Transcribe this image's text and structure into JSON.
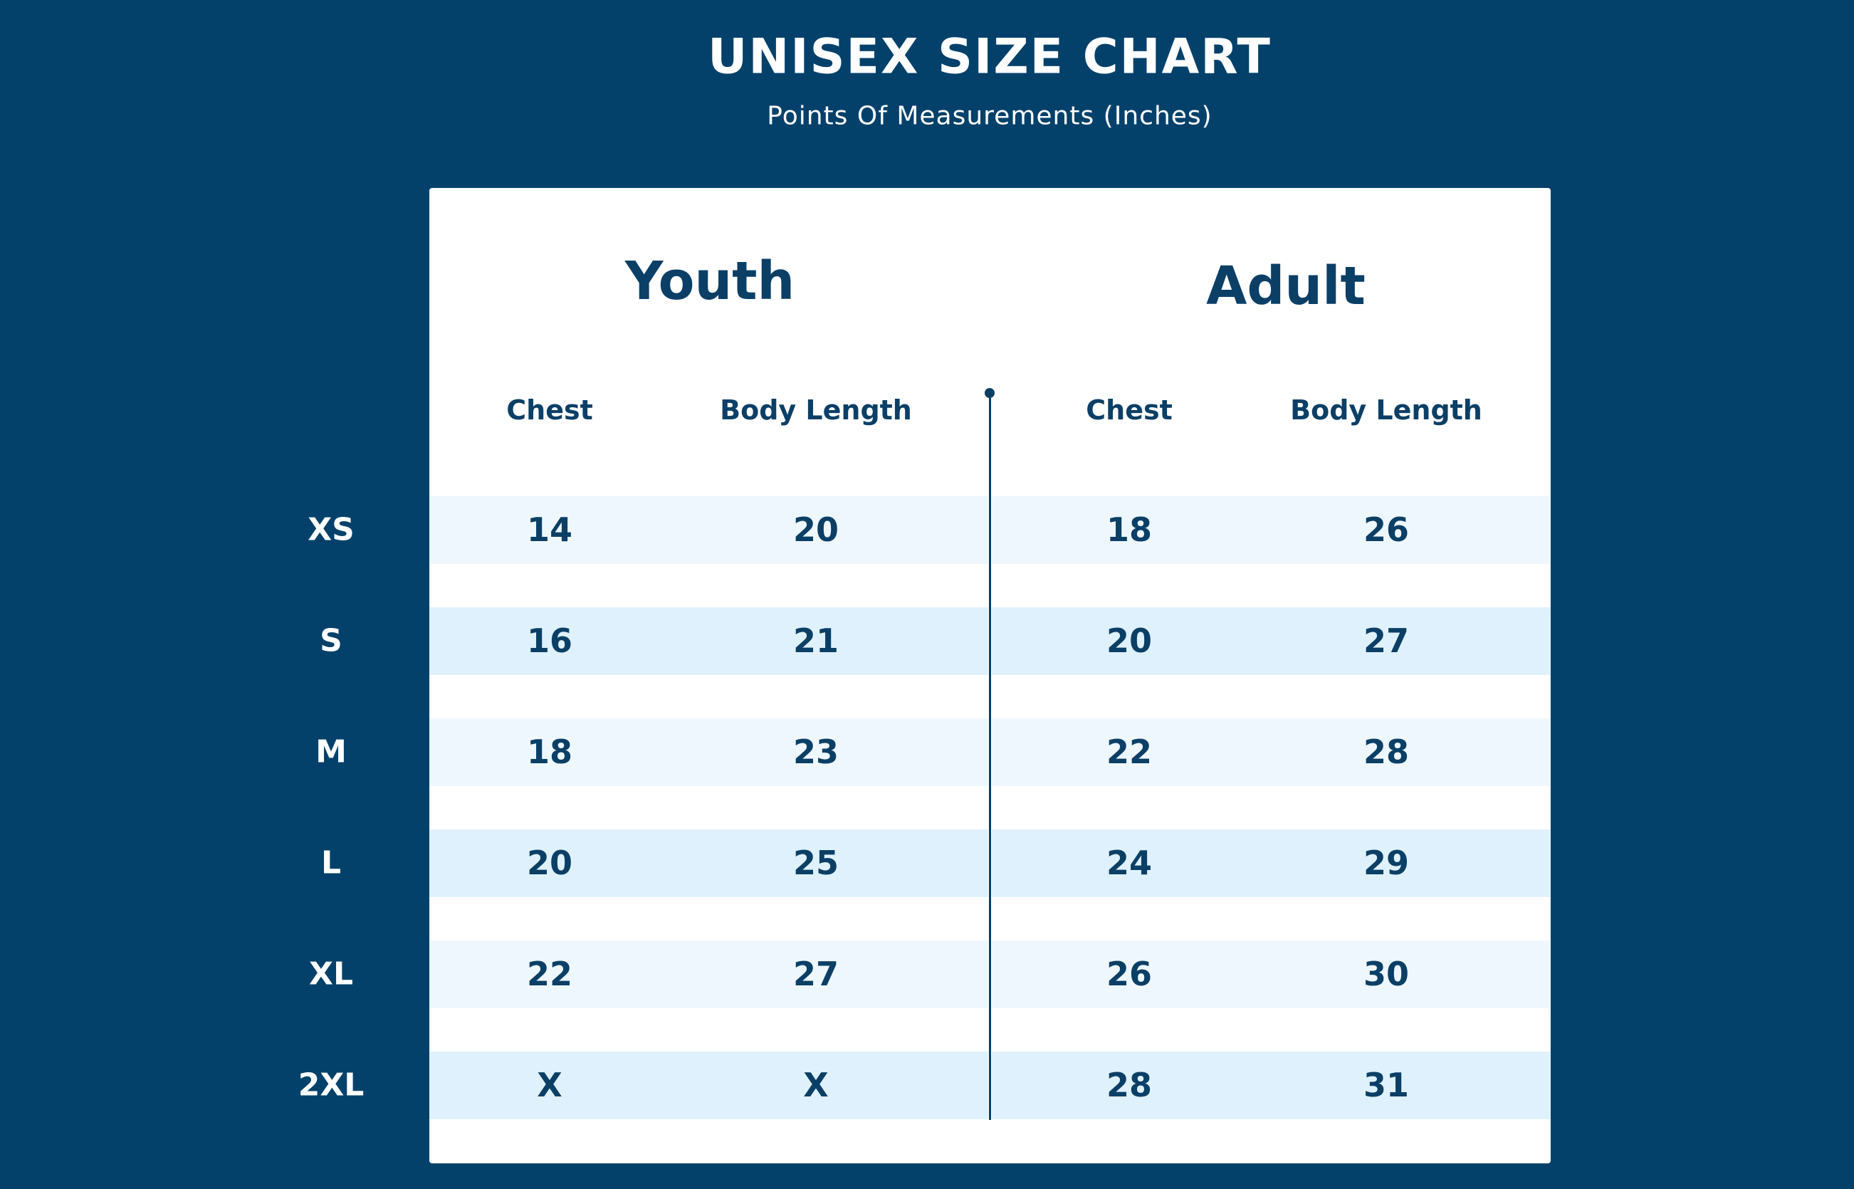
{
  "header": {
    "title": "UNISEX SIZE CHART",
    "subtitle": "Points Of Measurements (Inches)"
  },
  "table": {
    "groups": [
      "Youth",
      "Adult"
    ],
    "columns": [
      "Chest",
      "Body Length",
      "Chest",
      "Body Length"
    ],
    "rows": [
      {
        "size": "XS",
        "cells": [
          14,
          20,
          18,
          26
        ]
      },
      {
        "size": "S",
        "cells": [
          16,
          21,
          20,
          27
        ]
      },
      {
        "size": "M",
        "cells": [
          18,
          23,
          22,
          28
        ]
      },
      {
        "size": "L",
        "cells": [
          20,
          25,
          24,
          29
        ]
      },
      {
        "size": "XL",
        "cells": [
          22,
          27,
          26,
          30
        ]
      },
      {
        "size": "2XL",
        "cells": [
          "X",
          "X",
          28,
          31
        ]
      }
    ]
  }
}
